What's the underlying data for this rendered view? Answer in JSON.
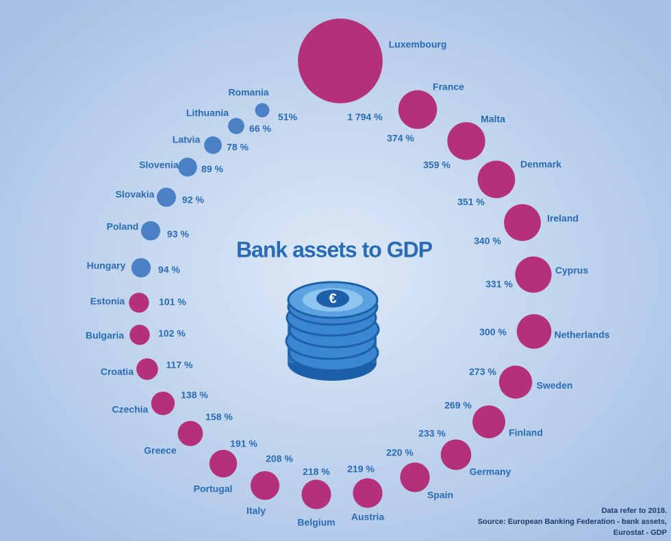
{
  "chart_data": {
    "type": "bubble",
    "title": "Bank assets to GDP",
    "categories": [
      "Luxembourg",
      "France",
      "Malta",
      "Denmark",
      "Ireland",
      "Cyprus",
      "Netherlands",
      "Sweden",
      "Finland",
      "Germany",
      "Spain",
      "Austria",
      "Belgium",
      "Italy",
      "Portugal",
      "Greece",
      "Czechia",
      "Croatia",
      "Bulgaria",
      "Estonia",
      "Hungary",
      "Poland",
      "Slovakia",
      "Slovenia",
      "Latvia",
      "Lithuania",
      "Romania"
    ],
    "values": [
      1794,
      374,
      359,
      351,
      340,
      331,
      300,
      273,
      269,
      233,
      220,
      219,
      218,
      208,
      191,
      158,
      138,
      117,
      102,
      101,
      94,
      93,
      92,
      89,
      78,
      66,
      51
    ],
    "value_labels": [
      "1 794 %",
      "374 %",
      "359 %",
      "351 %",
      "340 %",
      "331 %",
      "300 %",
      "273 %",
      "269 %",
      "233 %",
      "220 %",
      "219 %",
      "218 %",
      "208 %",
      "191 %",
      "158 %",
      "138 %",
      "117 %",
      "102 %",
      "101 %",
      "94 %",
      "93 %",
      "92 %",
      "89 %",
      "78 %",
      "66 %",
      "51%"
    ],
    "colors": [
      "#b5307a",
      "#b5307a",
      "#b5307a",
      "#b5307a",
      "#b5307a",
      "#b5307a",
      "#b5307a",
      "#b5307a",
      "#b5307a",
      "#b5307a",
      "#b5307a",
      "#b5307a",
      "#b5307a",
      "#b5307a",
      "#b5307a",
      "#b5307a",
      "#b5307a",
      "#b5307a",
      "#b5307a",
      "#b5307a",
      "#4a80c4",
      "#4a80c4",
      "#4a80c4",
      "#4a80c4",
      "#4a80c4",
      "#4a80c4",
      "#4a80c4"
    ],
    "notes": [
      "Data refer to 2018.",
      "Source: European Banking Federation - bank assets,",
      "Eurostat - GDP"
    ]
  }
}
